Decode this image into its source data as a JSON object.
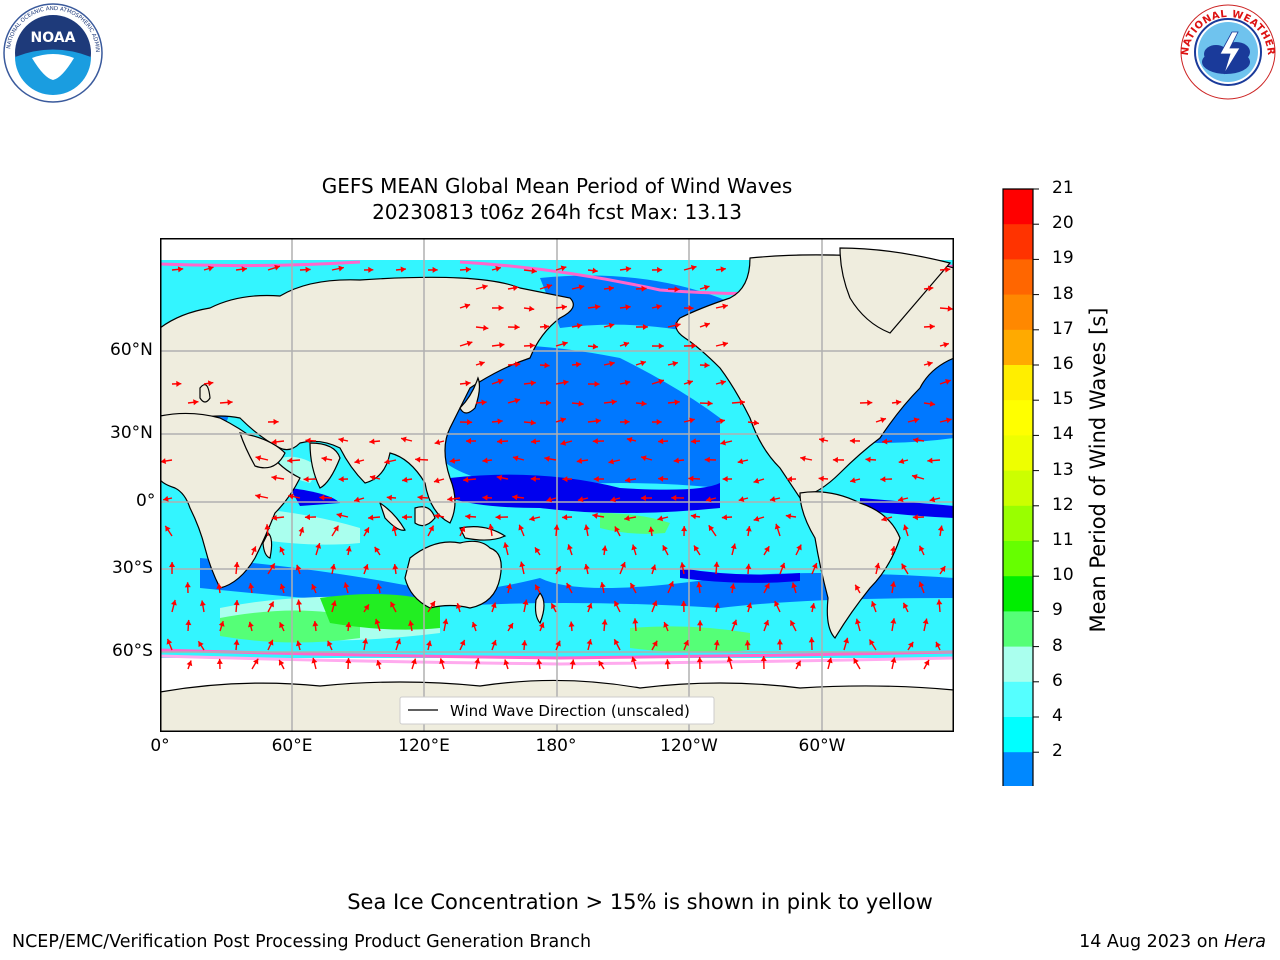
{
  "title": {
    "line1": "GEFS MEAN Global Mean Period of Wind Waves",
    "line2": "20230813 t06z 264h fcst   Max: 13.13"
  },
  "logos": {
    "left": {
      "name": "noaa-logo",
      "text": "NOAA",
      "ring_text": "NATIONAL OCEANIC AND ATMOSPHERIC ADMINISTRATION · U.S. DEPARTMENT OF COMMERCE"
    },
    "right": {
      "name": "nws-logo",
      "ring_text": "NATIONAL WEATHER SERVICE"
    }
  },
  "map": {
    "projection": "plate-carree",
    "central_longitude": 180,
    "y_ticks": [
      "60°N",
      "30°N",
      "0°",
      "30°S",
      "60°S"
    ],
    "x_ticks": [
      "0°",
      "60°E",
      "120°E",
      "180°",
      "120°W",
      "60°W"
    ],
    "grid": true,
    "land_color": "#efedde",
    "legend": {
      "label": "Wind Wave Direction (unscaled)",
      "position": "lower-center"
    },
    "vector_color": "#ff0000"
  },
  "colorbar": {
    "label": "Mean Period of Wind Waves [s]",
    "ticks": [
      "21",
      "20",
      "19",
      "18",
      "17",
      "16",
      "15",
      "14",
      "13",
      "12",
      "11",
      "10",
      "9",
      "8",
      "6",
      "4",
      "2"
    ],
    "colors_top_to_bottom": [
      "#ff0000",
      "#ff3300",
      "#ff6600",
      "#ff8800",
      "#ffaa00",
      "#ffee00",
      "#ffff00",
      "#eeff00",
      "#ccff00",
      "#99ff00",
      "#66ff00",
      "#00ee00",
      "#55ff77",
      "#aaffee",
      "#55ffff",
      "#00ffff",
      "#0088ff"
    ],
    "extend_color": "#0000ff"
  },
  "footer": {
    "note": "Sea Ice Concentration > 15% is shown in pink to yellow",
    "left": "NCEP/EMC/Verification Post Processing Product Generation Branch",
    "date": "14 Aug 2023 on",
    "host": "Hera"
  }
}
